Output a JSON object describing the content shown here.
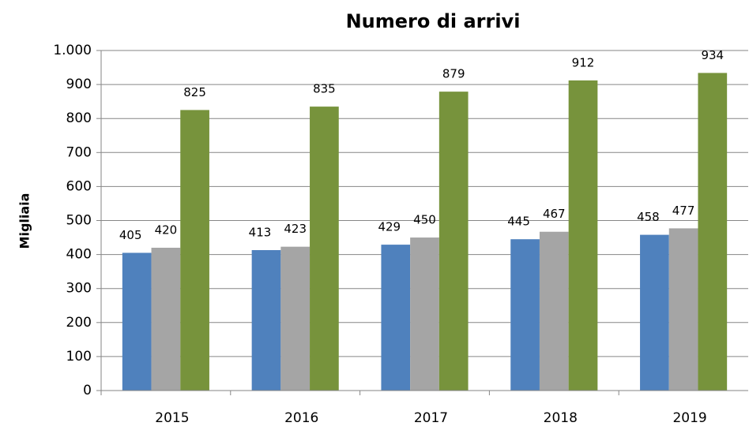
{
  "chart_data": {
    "type": "bar",
    "title": "Numero di arrivi",
    "y_label": "Migliaia",
    "categories": [
      "2015",
      "2016",
      "2017",
      "2018",
      "2019"
    ],
    "series": [
      {
        "color": "#4f81bd",
        "values": [
          405,
          413,
          429,
          445,
          458
        ]
      },
      {
        "color": "#a5a5a5",
        "values": [
          420,
          423,
          450,
          467,
          477
        ]
      },
      {
        "color": "#77933c",
        "values": [
          825,
          835,
          879,
          912,
          934
        ]
      }
    ],
    "ylim": [
      0,
      1000
    ],
    "yticks": [
      0,
      100,
      200,
      300,
      400,
      500,
      600,
      700,
      800,
      900,
      {
        "value": 1000,
        "label": "1.000"
      }
    ],
    "grid": true
  }
}
